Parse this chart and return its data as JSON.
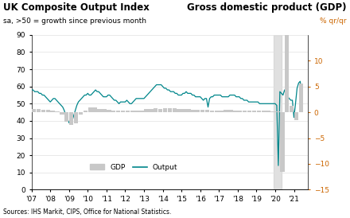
{
  "title_left": "UK Composite Output Index",
  "subtitle_left": "sa, >50 = growth since previous month",
  "title_right": "Gross domestic product (GDP)",
  "subtitle_right": "% qr/qr",
  "source": "Sources: IHS Markit, CIPS, Office for National Statistics.",
  "ylim_left": [
    0,
    90
  ],
  "ylim_right": [
    -15,
    15
  ],
  "yticks_left": [
    0,
    10,
    20,
    30,
    40,
    50,
    60,
    70,
    80,
    90
  ],
  "yticks_right": [
    -15,
    -10,
    -5,
    0,
    5,
    10
  ],
  "output_color": "#00868B",
  "gdp_color": "#C8C8C8",
  "shading_color": "#CCCCCC",
  "background_color": "#ffffff",
  "output_x": [
    2007.0,
    2007.083,
    2007.167,
    2007.25,
    2007.333,
    2007.417,
    2007.5,
    2007.583,
    2007.667,
    2007.75,
    2007.833,
    2007.917,
    2008.0,
    2008.083,
    2008.167,
    2008.25,
    2008.333,
    2008.417,
    2008.5,
    2008.583,
    2008.667,
    2008.75,
    2008.833,
    2008.917,
    2009.0,
    2009.083,
    2009.167,
    2009.25,
    2009.333,
    2009.417,
    2009.5,
    2009.583,
    2009.667,
    2009.75,
    2009.833,
    2009.917,
    2010.0,
    2010.083,
    2010.167,
    2010.25,
    2010.333,
    2010.417,
    2010.5,
    2010.583,
    2010.667,
    2010.75,
    2010.833,
    2010.917,
    2011.0,
    2011.083,
    2011.167,
    2011.25,
    2011.333,
    2011.417,
    2011.5,
    2011.583,
    2011.667,
    2011.75,
    2011.833,
    2011.917,
    2012.0,
    2012.083,
    2012.167,
    2012.25,
    2012.333,
    2012.417,
    2012.5,
    2012.583,
    2012.667,
    2012.75,
    2012.833,
    2012.917,
    2013.0,
    2013.083,
    2013.167,
    2013.25,
    2013.333,
    2013.417,
    2013.5,
    2013.583,
    2013.667,
    2013.75,
    2013.833,
    2013.917,
    2014.0,
    2014.083,
    2014.167,
    2014.25,
    2014.333,
    2014.417,
    2014.5,
    2014.583,
    2014.667,
    2014.75,
    2014.833,
    2014.917,
    2015.0,
    2015.083,
    2015.167,
    2015.25,
    2015.333,
    2015.417,
    2015.5,
    2015.583,
    2015.667,
    2015.75,
    2015.833,
    2015.917,
    2016.0,
    2016.083,
    2016.167,
    2016.25,
    2016.333,
    2016.417,
    2016.5,
    2016.583,
    2016.667,
    2016.75,
    2016.833,
    2016.917,
    2017.0,
    2017.083,
    2017.167,
    2017.25,
    2017.333,
    2017.417,
    2017.5,
    2017.583,
    2017.667,
    2017.75,
    2017.833,
    2017.917,
    2018.0,
    2018.083,
    2018.167,
    2018.25,
    2018.333,
    2018.417,
    2018.5,
    2018.583,
    2018.667,
    2018.75,
    2018.833,
    2018.917,
    2019.0,
    2019.083,
    2019.167,
    2019.25,
    2019.333,
    2019.417,
    2019.5,
    2019.583,
    2019.667,
    2019.75,
    2019.833,
    2019.917,
    2020.0,
    2020.083,
    2020.167,
    2020.25,
    2020.333,
    2020.417,
    2020.5,
    2020.583,
    2020.667,
    2020.75,
    2020.833,
    2020.917,
    2021.0,
    2021.083,
    2021.167,
    2021.25,
    2021.333,
    2021.417
  ],
  "output_y": [
    58,
    58,
    57,
    57,
    57,
    56,
    56,
    55,
    55,
    54,
    53,
    52,
    51,
    52,
    53,
    53,
    52,
    51,
    50,
    49,
    48,
    46,
    43,
    41,
    39,
    38,
    40,
    43,
    46,
    49,
    51,
    52,
    53,
    54,
    55,
    55,
    56,
    55,
    55,
    56,
    57,
    58,
    57,
    57,
    56,
    55,
    54,
    54,
    54,
    55,
    55,
    54,
    53,
    52,
    52,
    51,
    50,
    51,
    51,
    51,
    51,
    52,
    51,
    50,
    50,
    51,
    52,
    53,
    53,
    53,
    53,
    53,
    53,
    54,
    55,
    56,
    57,
    58,
    59,
    60,
    61,
    61,
    61,
    61,
    60,
    59,
    59,
    58,
    58,
    57,
    57,
    57,
    56,
    56,
    55,
    55,
    55,
    56,
    56,
    57,
    56,
    56,
    56,
    55,
    55,
    54,
    54,
    54,
    54,
    53,
    52,
    53,
    53,
    48,
    53,
    54,
    54,
    55,
    55,
    55,
    55,
    55,
    54,
    54,
    54,
    54,
    54,
    55,
    55,
    55,
    55,
    54,
    54,
    54,
    53,
    53,
    52,
    52,
    52,
    51,
    51,
    51,
    51,
    51,
    51,
    51,
    50,
    50,
    50,
    50,
    50,
    50,
    50,
    50,
    50,
    50,
    50,
    49,
    14,
    57,
    56,
    55,
    58,
    55,
    54,
    53,
    52,
    52,
    42,
    50,
    59,
    62,
    63,
    56
  ],
  "gdp_x": [
    2007.125,
    2007.375,
    2007.625,
    2007.875,
    2008.125,
    2008.375,
    2008.625,
    2008.875,
    2009.125,
    2009.375,
    2009.625,
    2009.875,
    2010.125,
    2010.375,
    2010.625,
    2010.875,
    2011.125,
    2011.375,
    2011.625,
    2011.875,
    2012.125,
    2012.375,
    2012.625,
    2012.875,
    2013.125,
    2013.375,
    2013.625,
    2013.875,
    2014.125,
    2014.375,
    2014.625,
    2014.875,
    2015.125,
    2015.375,
    2015.625,
    2015.875,
    2016.125,
    2016.375,
    2016.625,
    2016.875,
    2017.125,
    2017.375,
    2017.625,
    2017.875,
    2018.125,
    2018.375,
    2018.625,
    2018.875,
    2019.125,
    2019.375,
    2019.625,
    2019.875,
    2020.125,
    2020.375,
    2020.625,
    2020.875,
    2021.125,
    2021.375
  ],
  "gdp_y": [
    0.6,
    0.6,
    0.5,
    0.5,
    0.4,
    0.2,
    -0.4,
    -1.8,
    -2.5,
    -2.2,
    -0.4,
    0.4,
    0.9,
    0.9,
    0.7,
    0.6,
    0.5,
    0.4,
    0.3,
    0.3,
    0.3,
    0.4,
    0.4,
    0.4,
    0.6,
    0.7,
    0.8,
    0.7,
    0.8,
    0.8,
    0.8,
    0.7,
    0.7,
    0.6,
    0.5,
    0.5,
    0.5,
    0.5,
    0.4,
    0.4,
    0.4,
    0.5,
    0.5,
    0.4,
    0.3,
    0.3,
    0.3,
    0.3,
    0.4,
    0.3,
    0.3,
    0.2,
    0.2,
    -11.5,
    16.0,
    1.2,
    -1.5,
    5.5
  ],
  "xtick_positions": [
    2007,
    2008,
    2009,
    2010,
    2011,
    2012,
    2013,
    2014,
    2015,
    2016,
    2017,
    2018,
    2019,
    2020,
    2021
  ],
  "xtick_labels": [
    "'07",
    "'08",
    "'09",
    "'10",
    "'11",
    "'12",
    "'13",
    "'14",
    "'15",
    "'16",
    "'17",
    "'18",
    "'19",
    "'20",
    "'21"
  ],
  "xlim": [
    2007,
    2021.75
  ],
  "shading_x0": 2019.917,
  "shading_x1": 2020.35
}
